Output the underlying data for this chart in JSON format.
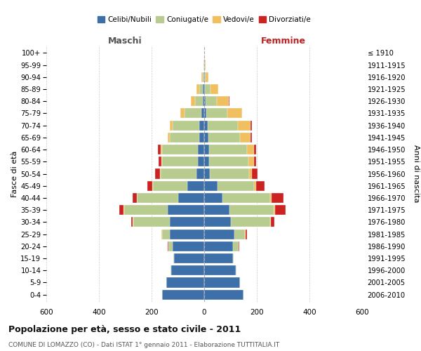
{
  "age_groups": [
    "0-4",
    "5-9",
    "10-14",
    "15-19",
    "20-24",
    "25-29",
    "30-34",
    "35-39",
    "40-44",
    "45-49",
    "50-54",
    "55-59",
    "60-64",
    "65-69",
    "70-74",
    "75-79",
    "80-84",
    "85-89",
    "90-94",
    "95-99",
    "100+"
  ],
  "birth_years": [
    "2006-2010",
    "2001-2005",
    "1996-2000",
    "1991-1995",
    "1986-1990",
    "1981-1985",
    "1976-1980",
    "1971-1975",
    "1966-1970",
    "1961-1965",
    "1956-1960",
    "1951-1955",
    "1946-1950",
    "1941-1945",
    "1936-1940",
    "1931-1935",
    "1926-1930",
    "1921-1925",
    "1916-1920",
    "1911-1915",
    "≤ 1910"
  ],
  "maschi": {
    "celibi": [
      160,
      145,
      125,
      115,
      120,
      130,
      130,
      140,
      100,
      65,
      30,
      25,
      25,
      20,
      20,
      10,
      5,
      5,
      2,
      1,
      0
    ],
    "coniugati": [
      0,
      0,
      2,
      2,
      15,
      30,
      140,
      165,
      155,
      130,
      135,
      135,
      135,
      110,
      100,
      65,
      30,
      15,
      3,
      1,
      0
    ],
    "vedovi": [
      0,
      0,
      0,
      0,
      1,
      2,
      2,
      2,
      2,
      2,
      3,
      3,
      5,
      8,
      12,
      15,
      15,
      10,
      5,
      2,
      0
    ],
    "divorziati": [
      0,
      0,
      0,
      0,
      2,
      2,
      5,
      15,
      15,
      20,
      20,
      10,
      10,
      0,
      0,
      0,
      0,
      0,
      0,
      0,
      0
    ]
  },
  "femmine": {
    "nubili": [
      150,
      135,
      120,
      110,
      110,
      115,
      100,
      95,
      70,
      50,
      20,
      18,
      18,
      15,
      12,
      8,
      4,
      3,
      1,
      1,
      0
    ],
    "coniugate": [
      0,
      0,
      2,
      3,
      20,
      40,
      150,
      170,
      180,
      140,
      150,
      150,
      145,
      120,
      115,
      80,
      45,
      20,
      5,
      2,
      0
    ],
    "vedove": [
      0,
      0,
      0,
      0,
      1,
      2,
      2,
      3,
      5,
      8,
      12,
      20,
      25,
      40,
      50,
      55,
      45,
      30,
      10,
      3,
      0
    ],
    "divorziate": [
      0,
      0,
      0,
      0,
      2,
      5,
      15,
      40,
      45,
      30,
      20,
      10,
      10,
      5,
      5,
      2,
      2,
      0,
      0,
      0,
      0
    ]
  },
  "colors": {
    "celibi": "#3d6fa8",
    "coniugati": "#b8cc90",
    "vedovi": "#f0c060",
    "divorziati": "#cc2222"
  },
  "xlim": 600,
  "title": "Popolazione per età, sesso e stato civile - 2011",
  "subtitle": "COMUNE DI LOMAZZO (CO) - Dati ISTAT 1° gennaio 2011 - Elaborazione TUTTITALIA.IT",
  "ylabel_left": "Fasce di età",
  "ylabel_right": "Anni di nascita",
  "xlabel_left": "Maschi",
  "xlabel_right": "Femmine"
}
